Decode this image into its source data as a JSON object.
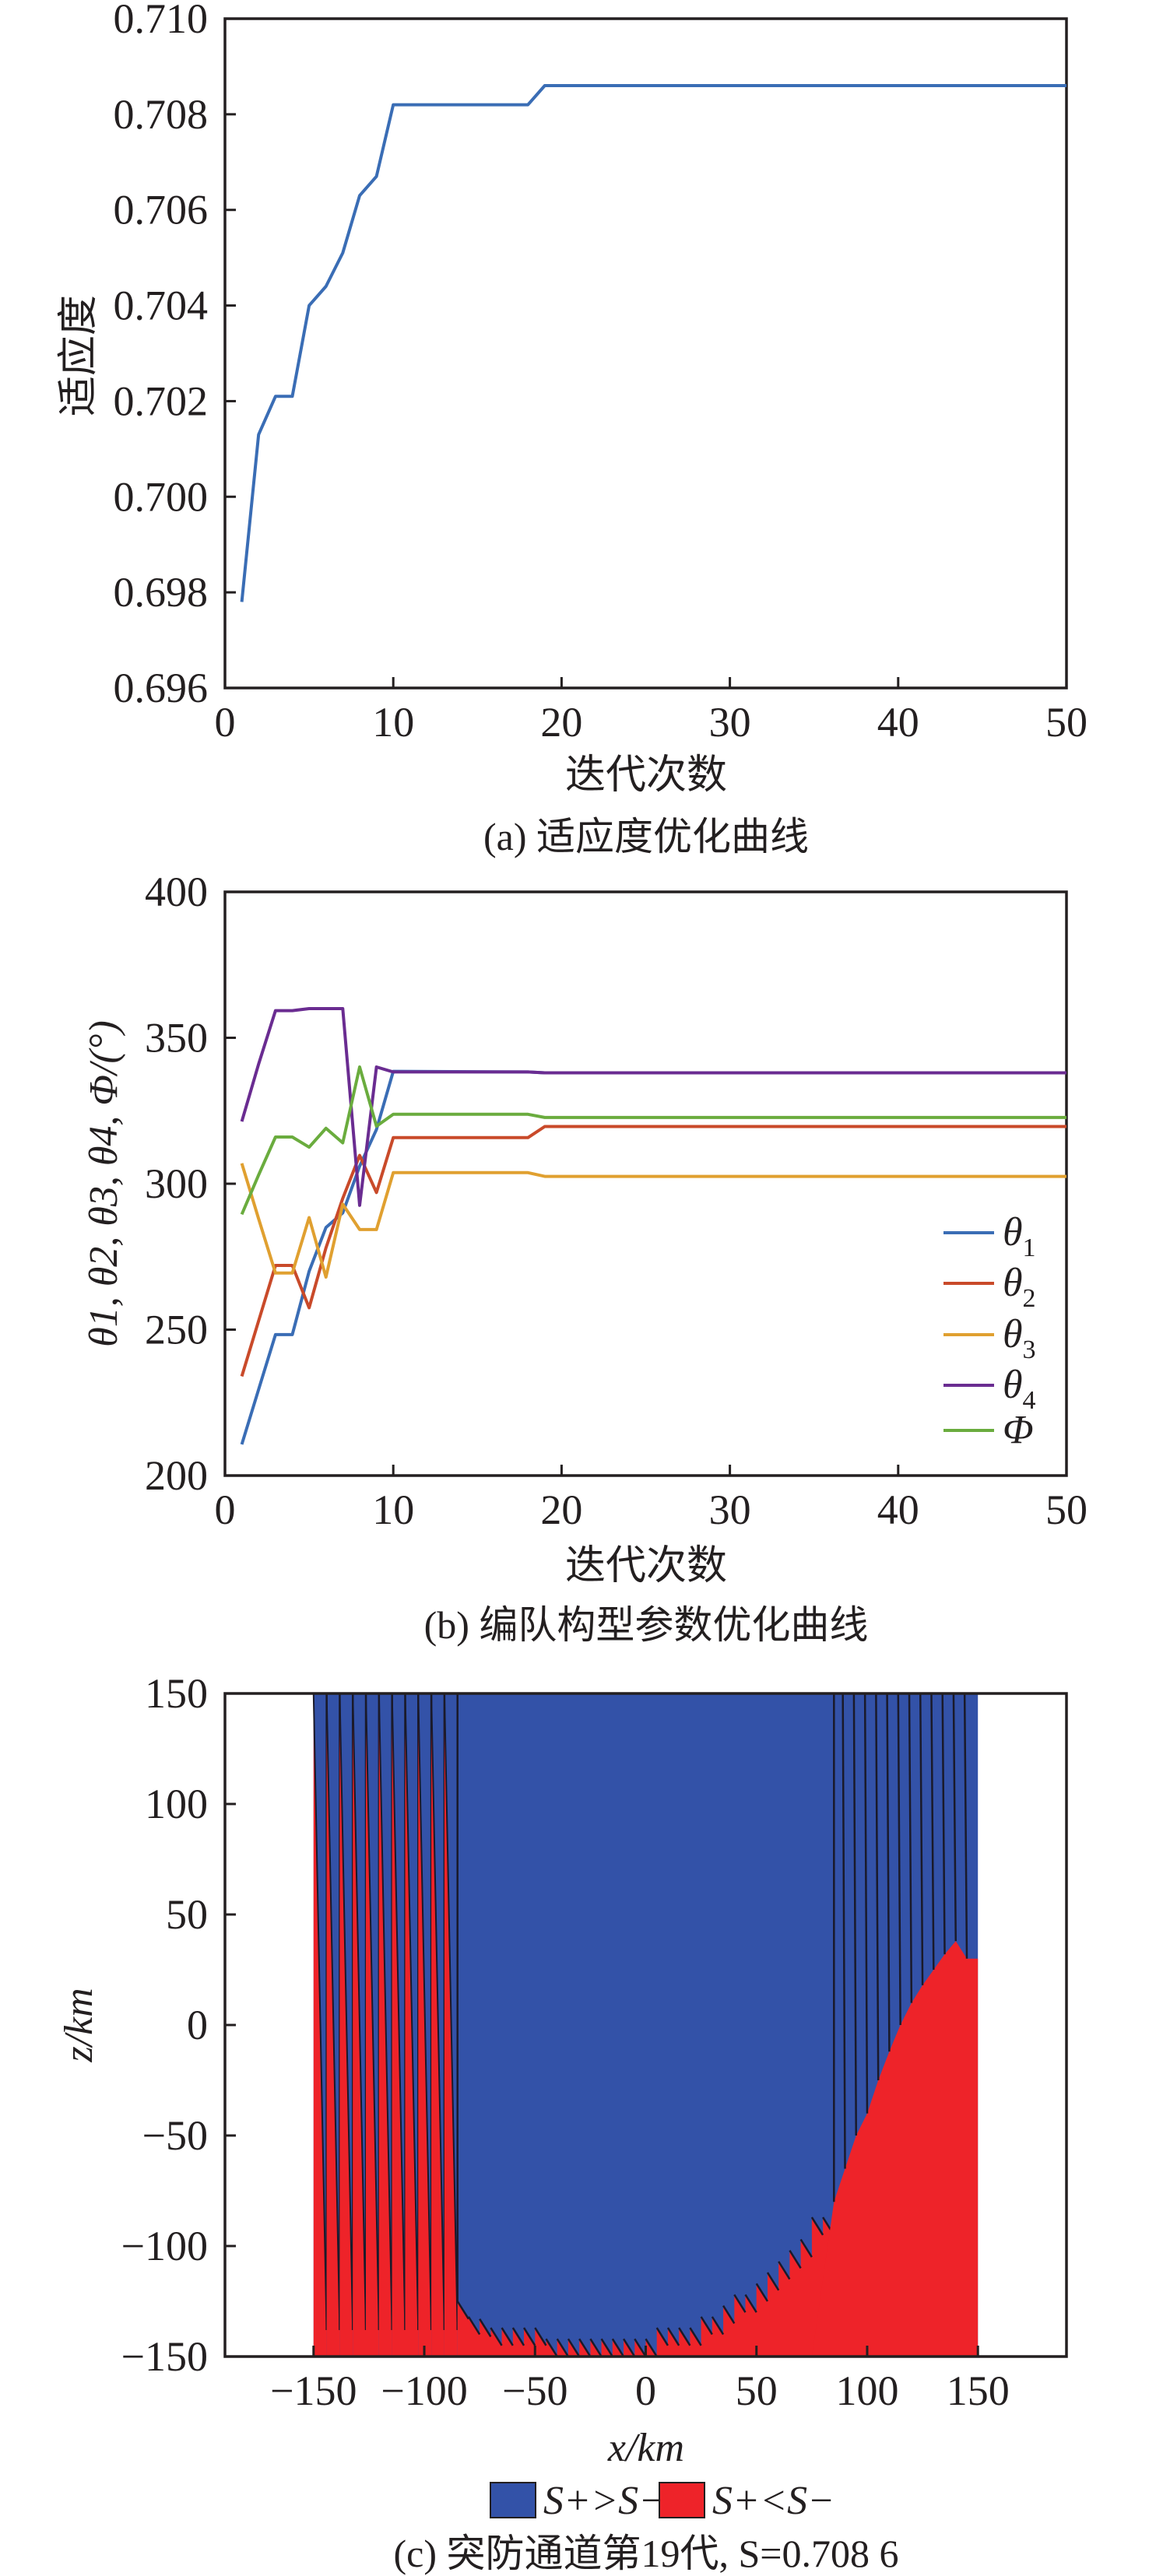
{
  "chart_data": [
    {
      "type": "line",
      "title": "(a) 适应度优化曲线",
      "xlabel": "迭代次数",
      "ylabel": "适应度",
      "xlim": [
        0,
        50
      ],
      "ylim": [
        0.696,
        0.71
      ],
      "xticks": [
        "0",
        "10",
        "20",
        "30",
        "40",
        "50"
      ],
      "yticks": [
        "0.696",
        "0.698",
        "0.700",
        "0.702",
        "0.704",
        "0.706",
        "0.708",
        "0.710"
      ],
      "grid": false,
      "series": [
        {
          "name": "适应度",
          "color": "#3a6db5",
          "x": [
            1,
            2,
            3,
            4,
            5,
            6,
            7,
            8,
            9,
            10,
            18,
            19,
            50
          ],
          "y": [
            0.6978,
            0.7013,
            0.7021,
            0.7021,
            0.704,
            0.7044,
            0.7051,
            0.7063,
            0.7067,
            0.7082,
            0.7082,
            0.7086,
            0.7086
          ]
        }
      ]
    },
    {
      "type": "line",
      "title": "(b) 编队构型参数优化曲线",
      "xlabel": "迭代次数",
      "ylabel": "θ1, θ2, θ3, θ4, Φ/(°)",
      "xlim": [
        0,
        50
      ],
      "ylim": [
        200,
        400
      ],
      "xticks": [
        "0",
        "10",
        "20",
        "30",
        "40",
        "50"
      ],
      "yticks": [
        "200",
        "250",
        "300",
        "350",
        "400"
      ],
      "grid": false,
      "legend_position": "right",
      "series": [
        {
          "name": "θ",
          "sub": "1",
          "color": "#3a6db5",
          "x": [
            1,
            2,
            3,
            4,
            5,
            6,
            7,
            8,
            9,
            10,
            18,
            19,
            50
          ],
          "y": [
            210.7,
            229.5,
            248.3,
            248.3,
            270,
            285,
            290,
            306,
            318.6,
            338.5,
            338.3,
            338,
            338
          ]
        },
        {
          "name": "θ",
          "sub": "2",
          "color": "#c94a2a",
          "x": [
            1,
            2,
            3,
            4,
            5,
            6,
            7,
            8,
            9,
            10,
            18,
            19,
            50
          ],
          "y": [
            234,
            253,
            272,
            272,
            257.5,
            278,
            295,
            309.7,
            297,
            315.8,
            315.8,
            319.6,
            319.6
          ]
        },
        {
          "name": "θ",
          "sub": "3",
          "color": "#e0a030",
          "x": [
            1,
            2,
            3,
            4,
            5,
            6,
            7,
            8,
            9,
            10,
            18,
            19,
            50
          ],
          "y": [
            307,
            288,
            269.4,
            269.4,
            288.4,
            268,
            293,
            284.3,
            284.3,
            303.8,
            303.8,
            302.5,
            302.5
          ]
        },
        {
          "name": "θ",
          "sub": "4",
          "color": "#6a2c91",
          "x": [
            1,
            2,
            3,
            4,
            5,
            6,
            7,
            8,
            9,
            10,
            18,
            19,
            50
          ],
          "y": [
            321.3,
            341,
            359.3,
            359.3,
            360,
            360,
            360,
            292.6,
            340,
            338.3,
            338.3,
            338,
            338
          ]
        },
        {
          "name": "Φ",
          "sub": "",
          "color": "#6aac3e",
          "x": [
            1,
            2,
            3,
            4,
            5,
            6,
            7,
            8,
            9,
            10,
            18,
            19,
            50
          ],
          "y": [
            289.5,
            303,
            316,
            316,
            312.5,
            319,
            314,
            340,
            319.7,
            323.8,
            323.8,
            322.7,
            322.7
          ]
        }
      ]
    },
    {
      "type": "area",
      "title": "(c) 突防通道第19代, S=0.708 6",
      "xlabel": "x/km",
      "ylabel": "z/km",
      "xlim": [
        -190,
        190
      ],
      "ylim": [
        -150,
        150
      ],
      "xticks": [
        "−150",
        "−100",
        "−50",
        "0",
        "50",
        "100",
        "150"
      ],
      "xtick_values": [
        -150,
        -100,
        -50,
        0,
        50,
        100,
        150
      ],
      "yticks": [
        "−150",
        "−100",
        "−50",
        "0",
        "50",
        "100",
        "150"
      ],
      "ytick_values": [
        -150,
        -100,
        -50,
        0,
        50,
        100,
        150
      ],
      "legend": [
        {
          "label": "S+>S−",
          "color": "#3352a8"
        },
        {
          "label": "S+<S−",
          "color": "#ee2329"
        }
      ],
      "domain_x": [
        -150,
        150
      ],
      "left_stripes": {
        "x_start": -150,
        "x_end": -85,
        "count": 11
      },
      "bottom_boundary": [
        [
          -85,
          -125
        ],
        [
          -80,
          -132
        ],
        [
          -75,
          -133
        ],
        [
          -70,
          -137
        ],
        [
          -65,
          -137
        ],
        [
          -60,
          -137
        ],
        [
          -55,
          -137
        ],
        [
          -50,
          -137
        ],
        [
          -45,
          -142
        ],
        [
          -40,
          -142
        ],
        [
          -35,
          -142
        ],
        [
          -30,
          -142
        ],
        [
          -25,
          -142
        ],
        [
          -20,
          -142
        ],
        [
          -15,
          -142
        ],
        [
          -10,
          -142
        ],
        [
          -5,
          -142
        ],
        [
          0,
          -142
        ],
        [
          5,
          -137
        ],
        [
          10,
          -137
        ],
        [
          15,
          -137
        ],
        [
          20,
          -137
        ],
        [
          25,
          -132
        ],
        [
          30,
          -132
        ],
        [
          35,
          -127
        ],
        [
          40,
          -122
        ],
        [
          45,
          -122
        ],
        [
          50,
          -117
        ],
        [
          55,
          -112
        ],
        [
          60,
          -107
        ],
        [
          65,
          -102
        ],
        [
          70,
          -97
        ],
        [
          75,
          -87
        ],
        [
          80,
          -87
        ],
        [
          85,
          -80
        ]
      ],
      "right_tips": [
        [
          85,
          -80
        ],
        [
          90,
          -65
        ],
        [
          95,
          -50
        ],
        [
          100,
          -40
        ],
        [
          105,
          -25
        ],
        [
          110,
          -12
        ],
        [
          115,
          0
        ],
        [
          120,
          10
        ],
        [
          125,
          18
        ],
        [
          130,
          25
        ],
        [
          135,
          32
        ],
        [
          140,
          38
        ],
        [
          145,
          30
        ],
        [
          150,
          30
        ]
      ]
    }
  ]
}
